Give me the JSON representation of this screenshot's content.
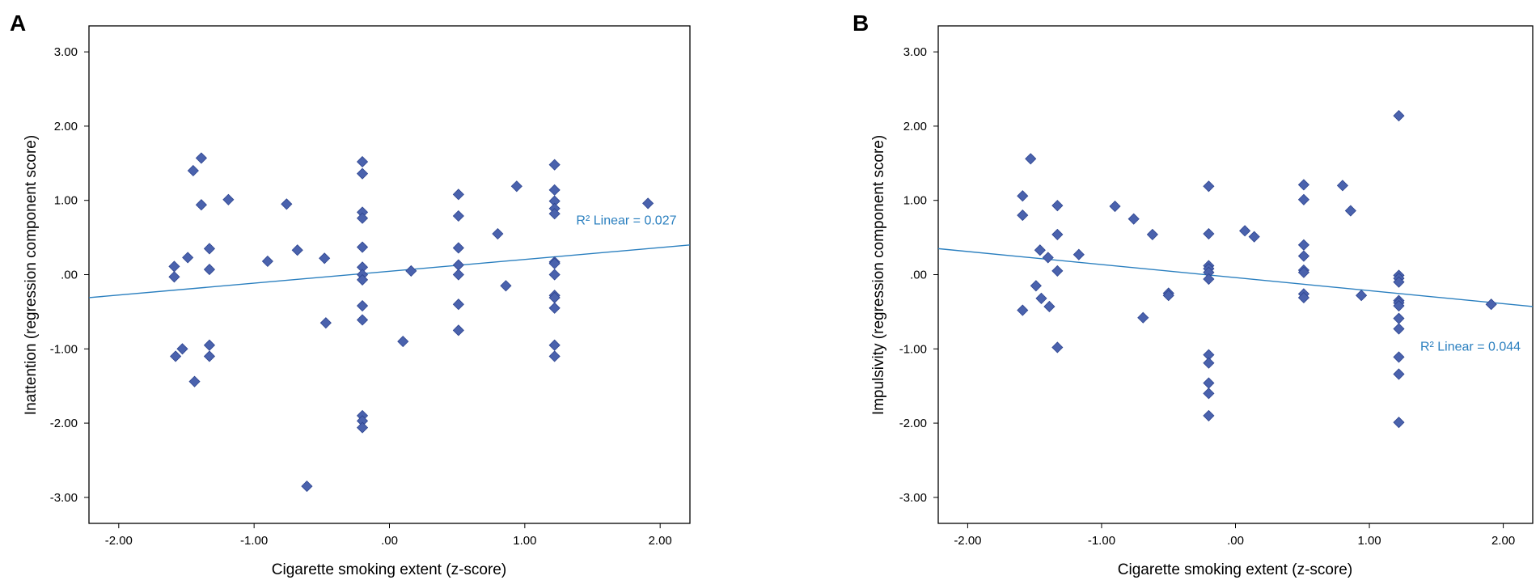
{
  "colors": {
    "point": "#4a62ad",
    "point_stroke": "#2e4590",
    "fit_line": "#2a7fbf",
    "axis": "#000000"
  },
  "chart_data": [
    {
      "panel": "A",
      "type": "scatter",
      "title": "",
      "xlabel": "Cigarette smoking extent (z-score)",
      "ylabel": "Inattention (regression component score)",
      "xlim": [
        -2.22,
        2.22
      ],
      "ylim": [
        -3.35,
        3.35
      ],
      "xticks": [
        -2,
        -1,
        0,
        1,
        2
      ],
      "xtick_labels": [
        "-2.00",
        "-1.00",
        ".00",
        "1.00",
        "2.00"
      ],
      "yticks": [
        3,
        2,
        1,
        0,
        -1,
        -2,
        -3
      ],
      "ytick_labels": [
        "3.00",
        "2.00",
        "1.00",
        ".00",
        "-1.00",
        "-2.00",
        "-3.00"
      ],
      "fit": {
        "x": [
          -2.22,
          2.22
        ],
        "y": [
          -0.31,
          0.4
        ]
      },
      "fit_label": "R² Linear = 0.027",
      "fit_label_pos": [
        1.38,
        0.73
      ],
      "points": [
        [
          -1.59,
          0.11
        ],
        [
          -1.59,
          -0.03
        ],
        [
          -1.58,
          -1.1
        ],
        [
          -1.53,
          -1.0
        ],
        [
          -1.49,
          0.23
        ],
        [
          -1.45,
          1.4
        ],
        [
          -1.44,
          -1.44
        ],
        [
          -1.39,
          1.57
        ],
        [
          -1.39,
          0.94
        ],
        [
          -1.33,
          0.35
        ],
        [
          -1.33,
          0.07
        ],
        [
          -1.33,
          -0.95
        ],
        [
          -1.33,
          -1.1
        ],
        [
          -1.19,
          1.01
        ],
        [
          -0.9,
          0.18
        ],
        [
          -0.76,
          0.95
        ],
        [
          -0.68,
          0.33
        ],
        [
          -0.61,
          -2.85
        ],
        [
          -0.48,
          0.22
        ],
        [
          -0.47,
          -0.65
        ],
        [
          -0.2,
          1.52
        ],
        [
          -0.2,
          1.36
        ],
        [
          -0.2,
          0.84
        ],
        [
          -0.2,
          0.76
        ],
        [
          -0.2,
          0.37
        ],
        [
          -0.2,
          0.1
        ],
        [
          -0.2,
          0.0
        ],
        [
          -0.2,
          -0.07
        ],
        [
          -0.2,
          -0.42
        ],
        [
          -0.2,
          -0.61
        ],
        [
          -0.2,
          -1.9
        ],
        [
          -0.2,
          -1.97
        ],
        [
          -0.2,
          -2.06
        ],
        [
          0.1,
          -0.9
        ],
        [
          0.16,
          0.05
        ],
        [
          0.51,
          1.08
        ],
        [
          0.51,
          0.79
        ],
        [
          0.51,
          0.36
        ],
        [
          0.51,
          0.13
        ],
        [
          0.51,
          0.0
        ],
        [
          0.51,
          -0.4
        ],
        [
          0.51,
          -0.75
        ],
        [
          0.8,
          0.55
        ],
        [
          0.86,
          -0.15
        ],
        [
          0.94,
          1.19
        ],
        [
          1.22,
          1.48
        ],
        [
          1.22,
          1.14
        ],
        [
          1.22,
          0.99
        ],
        [
          1.22,
          0.89
        ],
        [
          1.22,
          0.82
        ],
        [
          1.22,
          0.17
        ],
        [
          1.22,
          0.15
        ],
        [
          1.22,
          0.0
        ],
        [
          1.22,
          -0.28
        ],
        [
          1.22,
          -0.31
        ],
        [
          1.22,
          -0.45
        ],
        [
          1.22,
          -0.95
        ],
        [
          1.22,
          -1.1
        ],
        [
          1.91,
          0.96
        ]
      ]
    },
    {
      "panel": "B",
      "type": "scatter",
      "title": "",
      "xlabel": "Cigarette smoking extent (z-score)",
      "ylabel": "Impulsivity (regression component score)",
      "xlim": [
        -2.22,
        2.22
      ],
      "ylim": [
        -3.35,
        3.35
      ],
      "xticks": [
        -2,
        -1,
        0,
        1,
        2
      ],
      "xtick_labels": [
        "-2.00",
        "-1.00",
        ".00",
        "1.00",
        "2.00"
      ],
      "yticks": [
        3,
        2,
        1,
        0,
        -1,
        -2,
        -3
      ],
      "ytick_labels": [
        "3.00",
        "2.00",
        "1.00",
        ".00",
        "-1.00",
        "-2.00",
        "-3.00"
      ],
      "fit": {
        "x": [
          -2.22,
          2.22
        ],
        "y": [
          0.35,
          -0.43
        ]
      },
      "fit_label": "R² Linear = 0.044",
      "fit_label_pos": [
        1.38,
        -0.97
      ],
      "points": [
        [
          -1.59,
          1.06
        ],
        [
          -1.59,
          0.8
        ],
        [
          -1.59,
          -0.48
        ],
        [
          -1.53,
          1.56
        ],
        [
          -1.49,
          -0.15
        ],
        [
          -1.46,
          0.33
        ],
        [
          -1.45,
          -0.32
        ],
        [
          -1.4,
          0.23
        ],
        [
          -1.39,
          -0.43
        ],
        [
          -1.33,
          0.93
        ],
        [
          -1.33,
          0.54
        ],
        [
          -1.33,
          0.05
        ],
        [
          -1.33,
          -0.98
        ],
        [
          -1.17,
          0.27
        ],
        [
          -0.9,
          0.92
        ],
        [
          -0.76,
          0.75
        ],
        [
          -0.69,
          -0.58
        ],
        [
          -0.62,
          0.54
        ],
        [
          -0.5,
          -0.25
        ],
        [
          -0.5,
          -0.28
        ],
        [
          -0.2,
          1.19
        ],
        [
          -0.2,
          0.55
        ],
        [
          -0.2,
          0.12
        ],
        [
          -0.2,
          0.08
        ],
        [
          -0.2,
          0.03
        ],
        [
          -0.2,
          -0.06
        ],
        [
          -0.2,
          -1.08
        ],
        [
          -0.2,
          -1.19
        ],
        [
          -0.2,
          -1.46
        ],
        [
          -0.2,
          -1.6
        ],
        [
          -0.2,
          -1.9
        ],
        [
          0.07,
          0.59
        ],
        [
          0.14,
          0.51
        ],
        [
          0.51,
          1.21
        ],
        [
          0.51,
          1.01
        ],
        [
          0.51,
          0.4
        ],
        [
          0.51,
          0.25
        ],
        [
          0.51,
          0.06
        ],
        [
          0.51,
          0.03
        ],
        [
          0.51,
          -0.26
        ],
        [
          0.51,
          -0.31
        ],
        [
          0.8,
          1.2
        ],
        [
          0.86,
          0.86
        ],
        [
          0.94,
          -0.28
        ],
        [
          1.22,
          2.14
        ],
        [
          1.22,
          -0.01
        ],
        [
          1.22,
          -0.05
        ],
        [
          1.22,
          -0.1
        ],
        [
          1.22,
          -0.35
        ],
        [
          1.22,
          -0.38
        ],
        [
          1.22,
          -0.42
        ],
        [
          1.22,
          -0.59
        ],
        [
          1.22,
          -0.73
        ],
        [
          1.22,
          -1.11
        ],
        [
          1.22,
          -1.34
        ],
        [
          1.22,
          -1.99
        ],
        [
          1.91,
          -0.4
        ]
      ]
    }
  ]
}
